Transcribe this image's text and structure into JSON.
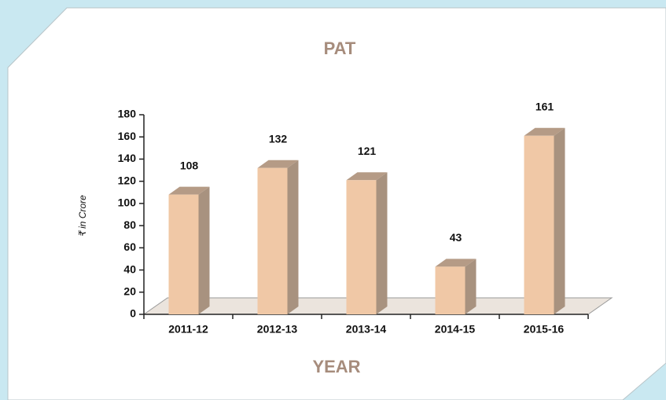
{
  "chart_data": {
    "type": "bar",
    "title": "PAT",
    "y_label": "₹ in Crore",
    "x_label": "YEAR",
    "categories": [
      "2011-12",
      "2012-13",
      "2013-14",
      "2014-15",
      "2015-16"
    ],
    "values": [
      108,
      132,
      121,
      43,
      161
    ],
    "color": "#f0c8a6",
    "ylim": [
      0,
      180
    ],
    "yticks": [
      0,
      20,
      40,
      60,
      80,
      100,
      120,
      140,
      160,
      180
    ]
  }
}
